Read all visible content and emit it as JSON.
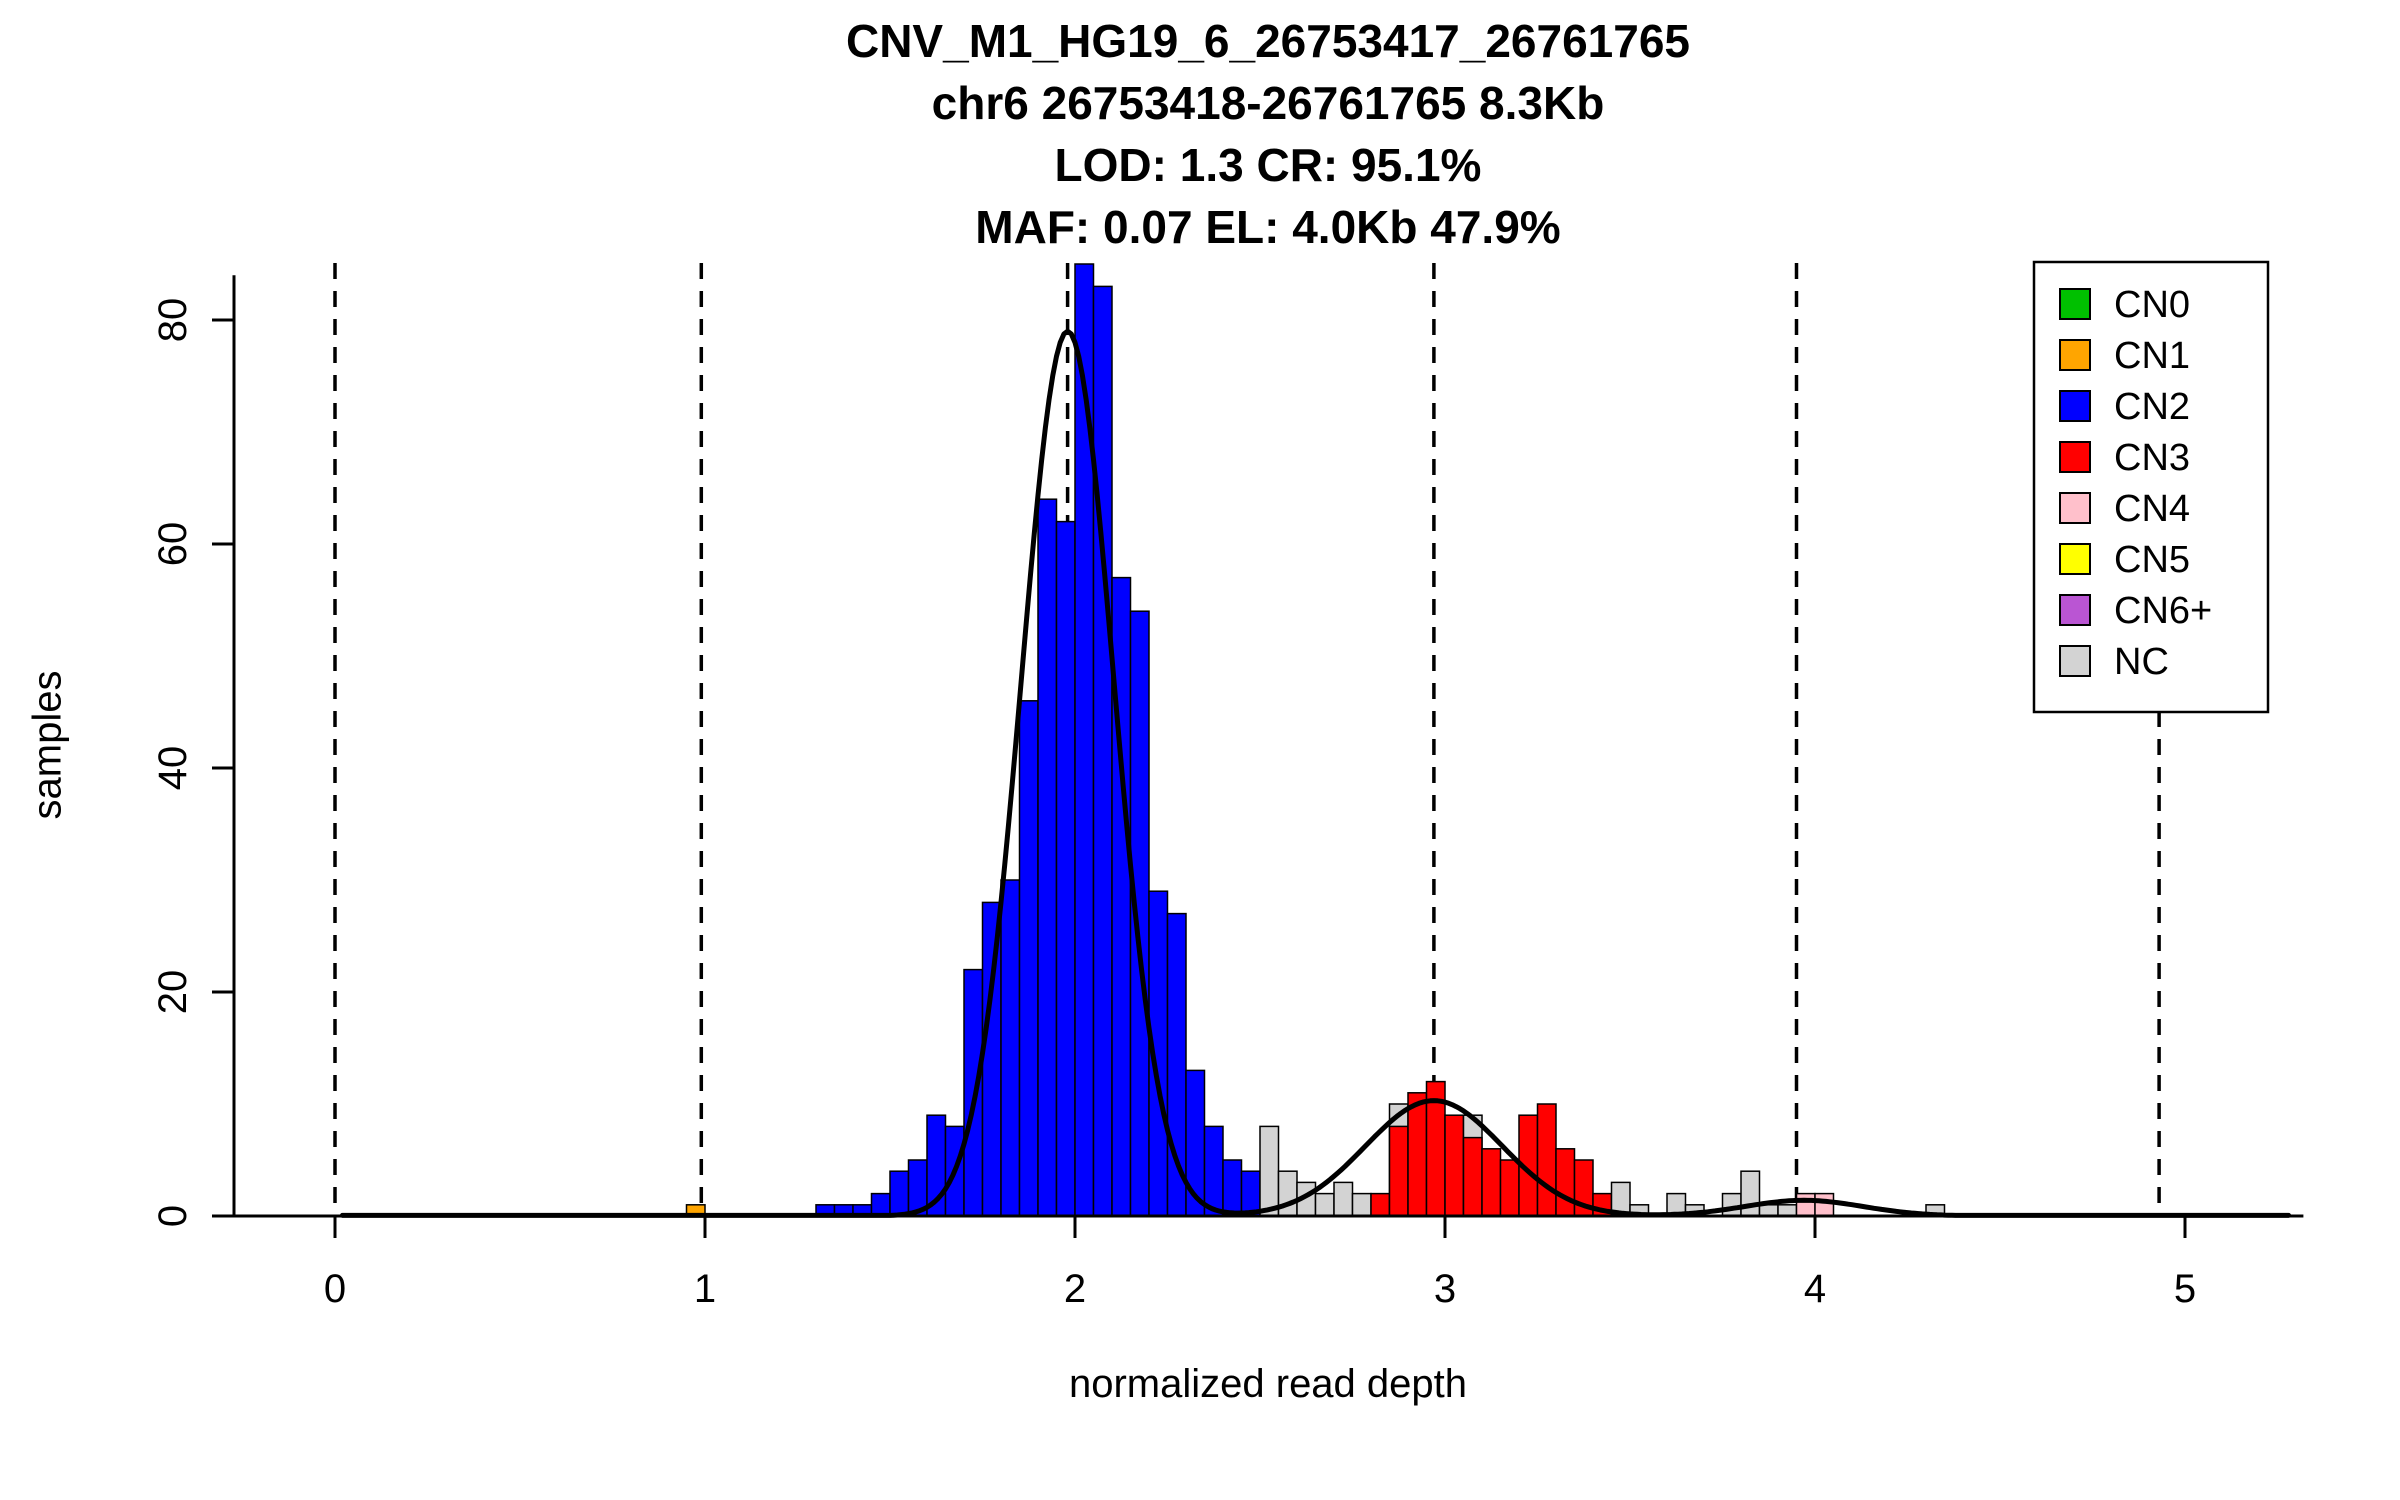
{
  "title": {
    "line1": "CNV_M1_HG19_6_26753417_26761765",
    "line2": "chr6 26753418-26761765 8.3Kb",
    "line3": "LOD: 1.3 CR: 95.1%",
    "line4": "MAF: 0.07 EL: 4.0Kb 47.9%"
  },
  "axes": {
    "xlabel": "normalized read depth",
    "ylabel": "samples",
    "x_ticks": [
      0,
      1,
      2,
      3,
      4,
      5
    ],
    "y_ticks": [
      0,
      20,
      40,
      60,
      80
    ],
    "xlim": [
      -0.28,
      5.32
    ],
    "ylim": [
      0,
      85
    ]
  },
  "colors": {
    "CN0": "#00C000",
    "CN1": "#FFA500",
    "CN2": "#0000FF",
    "CN3": "#FF0000",
    "CN4": "#FFC0CB",
    "CN5": "#FFFF00",
    "CN6+": "#BA55D3",
    "NC": "#D3D3D3",
    "bar_border": "#000000",
    "curve": "#000000",
    "axis": "#000000"
  },
  "legend": {
    "items": [
      {
        "label": "CN0",
        "color_key": "CN0"
      },
      {
        "label": "CN1",
        "color_key": "CN1"
      },
      {
        "label": "CN2",
        "color_key": "CN2"
      },
      {
        "label": "CN3",
        "color_key": "CN3"
      },
      {
        "label": "CN4",
        "color_key": "CN4"
      },
      {
        "label": "CN5",
        "color_key": "CN5"
      },
      {
        "label": "CN6+",
        "color_key": "CN6+"
      },
      {
        "label": "NC",
        "color_key": "NC"
      }
    ]
  },
  "chart_data": {
    "type": "bar",
    "subtype": "histogram-with-density",
    "title": "CNV_M1_HG19_6_26753417_26761765",
    "xlabel": "normalized read depth",
    "ylabel": "samples",
    "xlim": [
      -0.28,
      5.32
    ],
    "ylim": [
      0,
      85
    ],
    "bin_width": 0.05,
    "cn_guide_lines_x": [
      0.0,
      0.99,
      1.98,
      2.97,
      3.95,
      4.93
    ],
    "bars": [
      {
        "x": 0.95,
        "h": 1,
        "cn": "CN1"
      },
      {
        "x": 1.3,
        "h": 1,
        "cn": "CN2"
      },
      {
        "x": 1.35,
        "h": 1,
        "cn": "CN2"
      },
      {
        "x": 1.4,
        "h": 1,
        "cn": "CN2"
      },
      {
        "x": 1.45,
        "h": 2,
        "cn": "CN2"
      },
      {
        "x": 1.5,
        "h": 4,
        "cn": "CN2"
      },
      {
        "x": 1.55,
        "h": 5,
        "cn": "CN2"
      },
      {
        "x": 1.6,
        "h": 9,
        "cn": "CN2"
      },
      {
        "x": 1.65,
        "h": 8,
        "cn": "CN2"
      },
      {
        "x": 1.7,
        "h": 22,
        "cn": "CN2"
      },
      {
        "x": 1.75,
        "h": 28,
        "cn": "CN2"
      },
      {
        "x": 1.8,
        "h": 30,
        "cn": "CN2"
      },
      {
        "x": 1.85,
        "h": 46,
        "cn": "CN2"
      },
      {
        "x": 1.9,
        "h": 64,
        "cn": "CN2"
      },
      {
        "x": 1.95,
        "h": 62,
        "cn": "CN2"
      },
      {
        "x": 2.0,
        "h": 85,
        "cn": "CN2"
      },
      {
        "x": 2.05,
        "h": 83,
        "cn": "CN2"
      },
      {
        "x": 2.1,
        "h": 57,
        "cn": "CN2"
      },
      {
        "x": 2.15,
        "h": 54,
        "cn": "CN2"
      },
      {
        "x": 2.2,
        "h": 29,
        "cn": "CN2"
      },
      {
        "x": 2.25,
        "h": 27,
        "cn": "CN2"
      },
      {
        "x": 2.3,
        "h": 13,
        "cn": "CN2"
      },
      {
        "x": 2.35,
        "h": 8,
        "cn": "CN2"
      },
      {
        "x": 2.4,
        "h": 5,
        "cn": "CN2"
      },
      {
        "x": 2.45,
        "h": 4,
        "cn": "CN2"
      },
      {
        "x": 2.5,
        "h": 8,
        "cn": "NC"
      },
      {
        "x": 2.55,
        "h": 4,
        "cn": "NC"
      },
      {
        "x": 2.6,
        "h": 3,
        "cn": "NC"
      },
      {
        "x": 2.65,
        "h": 2,
        "cn": "NC"
      },
      {
        "x": 2.7,
        "h": 3,
        "cn": "NC"
      },
      {
        "x": 2.75,
        "h": 2,
        "cn": "NC"
      },
      {
        "x": 2.8,
        "h": 2,
        "cn": "CN3"
      },
      {
        "x": 2.85,
        "h": 10,
        "cn": "NC"
      },
      {
        "x": 2.85,
        "h": 8,
        "cn": "CN3"
      },
      {
        "x": 2.9,
        "h": 11,
        "cn": "CN3"
      },
      {
        "x": 2.95,
        "h": 12,
        "cn": "CN3"
      },
      {
        "x": 3.0,
        "h": 9,
        "cn": "CN3"
      },
      {
        "x": 3.05,
        "h": 9,
        "cn": "NC"
      },
      {
        "x": 3.05,
        "h": 7,
        "cn": "CN3"
      },
      {
        "x": 3.1,
        "h": 6,
        "cn": "CN3"
      },
      {
        "x": 3.15,
        "h": 5,
        "cn": "CN3"
      },
      {
        "x": 3.2,
        "h": 9,
        "cn": "CN3"
      },
      {
        "x": 3.25,
        "h": 10,
        "cn": "CN3"
      },
      {
        "x": 3.3,
        "h": 6,
        "cn": "CN3"
      },
      {
        "x": 3.35,
        "h": 5,
        "cn": "CN3"
      },
      {
        "x": 3.4,
        "h": 2,
        "cn": "CN3"
      },
      {
        "x": 3.45,
        "h": 3,
        "cn": "NC"
      },
      {
        "x": 3.5,
        "h": 1,
        "cn": "NC"
      },
      {
        "x": 3.6,
        "h": 2,
        "cn": "NC"
      },
      {
        "x": 3.65,
        "h": 1,
        "cn": "NC"
      },
      {
        "x": 3.75,
        "h": 2,
        "cn": "NC"
      },
      {
        "x": 3.8,
        "h": 4,
        "cn": "NC"
      },
      {
        "x": 3.85,
        "h": 1,
        "cn": "NC"
      },
      {
        "x": 3.9,
        "h": 1,
        "cn": "NC"
      },
      {
        "x": 3.95,
        "h": 2,
        "cn": "CN4"
      },
      {
        "x": 4.0,
        "h": 2,
        "cn": "CN4"
      },
      {
        "x": 4.3,
        "h": 1,
        "cn": "NC"
      }
    ],
    "density_curve": {
      "range": [
        0.02,
        5.28
      ],
      "components": [
        {
          "mean": 1.98,
          "sd": 0.125,
          "amp": 79.0
        },
        {
          "mean": 2.97,
          "sd": 0.185,
          "amp": 10.3
        },
        {
          "mean": 3.97,
          "sd": 0.16,
          "amp": 1.4
        }
      ]
    }
  }
}
